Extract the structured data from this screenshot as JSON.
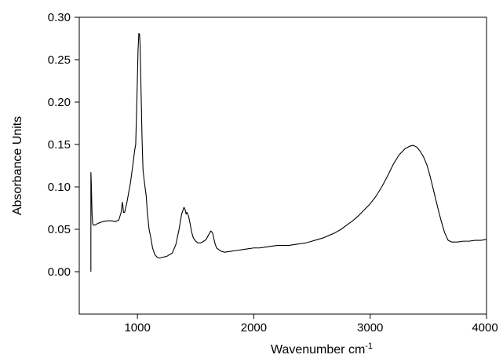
{
  "chart_data": {
    "type": "line",
    "title": "",
    "xlabel": "Wavenumber cm",
    "xlabel_superscript": "-1",
    "ylabel": "Absorbance Units",
    "xlim": [
      500,
      4000
    ],
    "ylim": [
      -0.05,
      0.3
    ],
    "x_ticks": [
      1000,
      2000,
      3000,
      4000
    ],
    "x_tick_labels": [
      "1000",
      "2000",
      "3000",
      "4000"
    ],
    "y_ticks": [
      0.0,
      0.05,
      0.1,
      0.15,
      0.2,
      0.25,
      0.3
    ],
    "y_tick_labels": [
      "0.00",
      "0.05",
      "0.10",
      "0.15",
      "0.20",
      "0.25",
      "0.30"
    ],
    "grid": false,
    "legend": "none",
    "line_color": "#000000",
    "series": [
      {
        "x": [
          600,
          600,
          603,
          606,
          610,
          615,
          620,
          635,
          660,
          700,
          740,
          780,
          810,
          840,
          860,
          870,
          875,
          880,
          890,
          910,
          940,
          960,
          975,
          985,
          995,
          1005,
          1012,
          1018,
          1022,
          1027,
          1033,
          1040,
          1048,
          1056,
          1065,
          1075,
          1085,
          1100,
          1115,
          1130,
          1150,
          1170,
          1190,
          1215,
          1250,
          1300,
          1330,
          1355,
          1380,
          1400,
          1410,
          1418,
          1425,
          1432,
          1440,
          1448,
          1455,
          1465,
          1480,
          1500,
          1520,
          1545,
          1570,
          1590,
          1610,
          1630,
          1645,
          1655,
          1665,
          1680,
          1700,
          1720,
          1750,
          1800,
          1850,
          1900,
          1950,
          2000,
          2050,
          2100,
          2150,
          2200,
          2250,
          2300,
          2350,
          2400,
          2450,
          2500,
          2550,
          2600,
          2650,
          2700,
          2750,
          2800,
          2850,
          2900,
          2950,
          3000,
          3050,
          3100,
          3150,
          3200,
          3250,
          3300,
          3340,
          3370,
          3400,
          3430,
          3460,
          3490,
          3520,
          3550,
          3580,
          3610,
          3640,
          3670,
          3700,
          3720,
          3750,
          3800,
          3850,
          3900,
          3950,
          4000
        ],
        "y": [
          0.0,
          0.117,
          0.106,
          0.09,
          0.068,
          0.058,
          0.055,
          0.055,
          0.057,
          0.059,
          0.06,
          0.06,
          0.059,
          0.061,
          0.07,
          0.082,
          0.078,
          0.07,
          0.07,
          0.082,
          0.105,
          0.125,
          0.142,
          0.15,
          0.2,
          0.26,
          0.281,
          0.28,
          0.27,
          0.24,
          0.2,
          0.155,
          0.12,
          0.11,
          0.1,
          0.09,
          0.07,
          0.05,
          0.04,
          0.028,
          0.02,
          0.017,
          0.016,
          0.017,
          0.018,
          0.022,
          0.032,
          0.048,
          0.068,
          0.076,
          0.073,
          0.068,
          0.07,
          0.068,
          0.065,
          0.06,
          0.055,
          0.047,
          0.04,
          0.036,
          0.034,
          0.034,
          0.036,
          0.038,
          0.043,
          0.048,
          0.046,
          0.04,
          0.034,
          0.028,
          0.026,
          0.024,
          0.023,
          0.024,
          0.025,
          0.026,
          0.027,
          0.028,
          0.028,
          0.029,
          0.03,
          0.031,
          0.031,
          0.031,
          0.032,
          0.033,
          0.034,
          0.036,
          0.038,
          0.04,
          0.043,
          0.046,
          0.05,
          0.055,
          0.06,
          0.066,
          0.073,
          0.08,
          0.089,
          0.1,
          0.113,
          0.127,
          0.138,
          0.145,
          0.148,
          0.149,
          0.147,
          0.142,
          0.135,
          0.125,
          0.11,
          0.093,
          0.076,
          0.06,
          0.046,
          0.037,
          0.035,
          0.035,
          0.035,
          0.036,
          0.036,
          0.037,
          0.037,
          0.038
        ]
      }
    ]
  }
}
